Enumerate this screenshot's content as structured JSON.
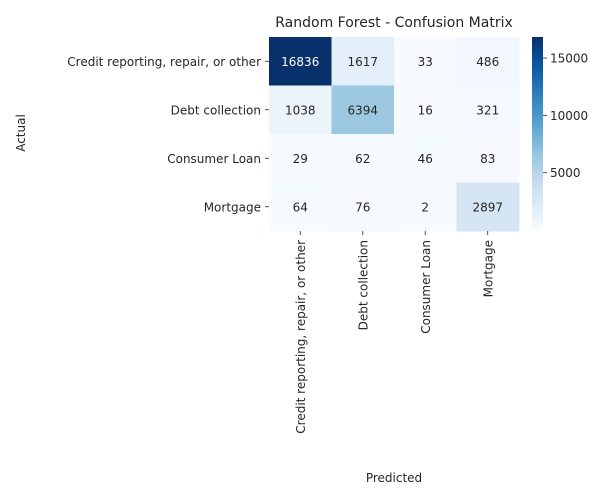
{
  "chart_data": {
    "type": "heatmap",
    "title": "Random Forest - Confusion Matrix",
    "xlabel": "Predicted",
    "ylabel": "Actual",
    "x_categories": [
      "Credit reporting, repair, or other",
      "Debt collection",
      "Consumer Loan",
      "Mortgage"
    ],
    "y_categories": [
      "Credit reporting, repair, or other",
      "Debt collection",
      "Consumer Loan",
      "Mortgage"
    ],
    "values": [
      [
        16836,
        1617,
        33,
        486
      ],
      [
        1038,
        6394,
        16,
        321
      ],
      [
        29,
        62,
        46,
        83
      ],
      [
        64,
        76,
        2,
        2897
      ]
    ],
    "colormap": "Blues",
    "colorbar": {
      "min": 2,
      "max": 16836,
      "ticks": [
        5000,
        10000,
        15000
      ]
    }
  }
}
